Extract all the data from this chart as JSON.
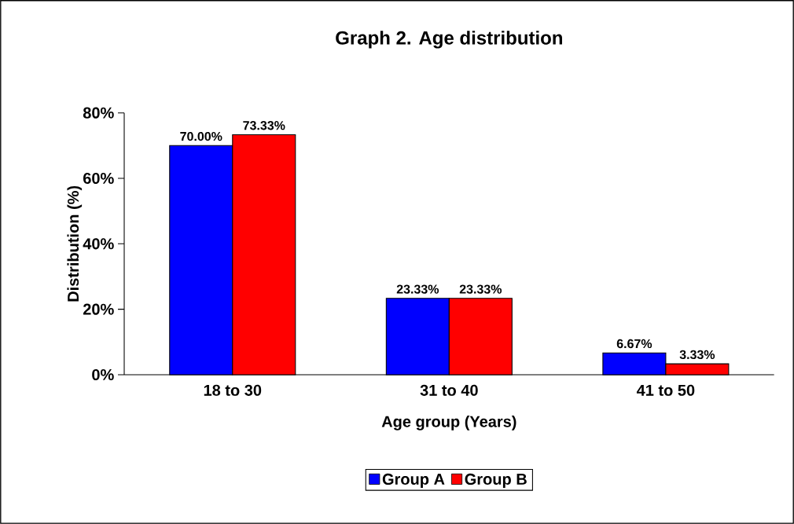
{
  "chart_data": {
    "type": "bar",
    "title": "Graph 2. Age distribution",
    "xlabel": "Age group (Years)",
    "ylabel": "Distribution (%)",
    "categories": [
      "18 to 30",
      "31 to 40",
      "41 to 50"
    ],
    "series": [
      {
        "name": "Group A",
        "color": "#0000ff",
        "values": [
          70.0,
          23.33,
          6.67
        ],
        "value_labels": [
          "70.00%",
          "23.33%",
          "6.67%"
        ]
      },
      {
        "name": "Group B",
        "color": "#ff0000",
        "values": [
          73.33,
          23.33,
          3.33
        ],
        "value_labels": [
          "73.33%",
          "23.33%",
          "3.33%"
        ]
      }
    ],
    "ylim": [
      0,
      80
    ],
    "yticks": [
      {
        "value": 0,
        "label": "0%"
      },
      {
        "value": 20,
        "label": "20%"
      },
      {
        "value": 40,
        "label": "40%"
      },
      {
        "value": 60,
        "label": "60%"
      },
      {
        "value": 80,
        "label": "80%"
      }
    ],
    "grid": false,
    "legend": "bottom"
  }
}
